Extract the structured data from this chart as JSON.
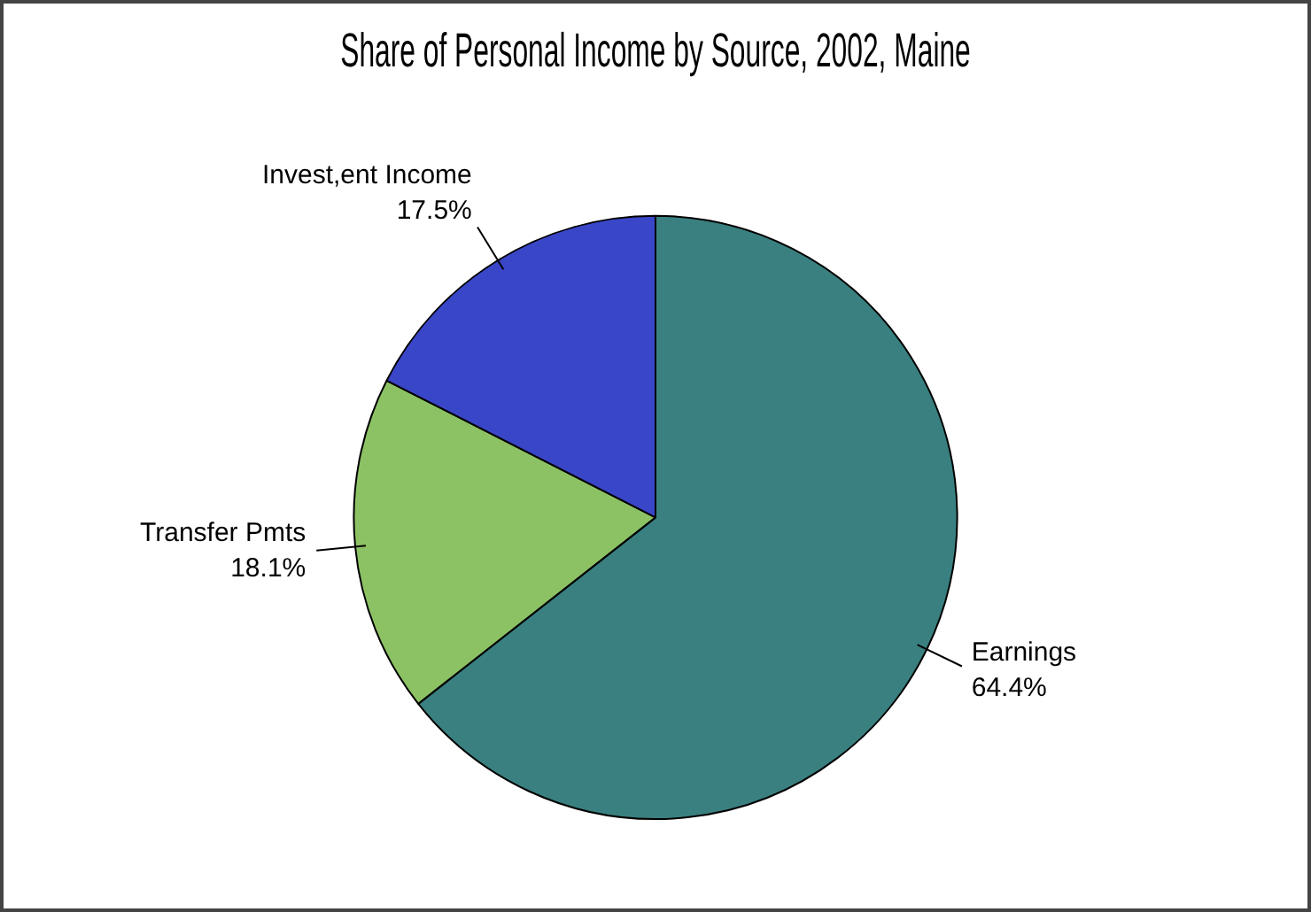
{
  "chart_data": {
    "type": "pie",
    "title": "Share of Personal Income by Source, 2002, Maine",
    "categories": [
      "Earnings",
      "Transfer Pmts",
      "Invest,ent Income"
    ],
    "values": [
      64.4,
      18.1,
      17.5
    ],
    "value_labels": [
      "64.4%",
      "18.1%",
      "17.5%"
    ],
    "colors": [
      "#3a8080",
      "#8cc264",
      "#3a46c8"
    ],
    "legend": false
  }
}
